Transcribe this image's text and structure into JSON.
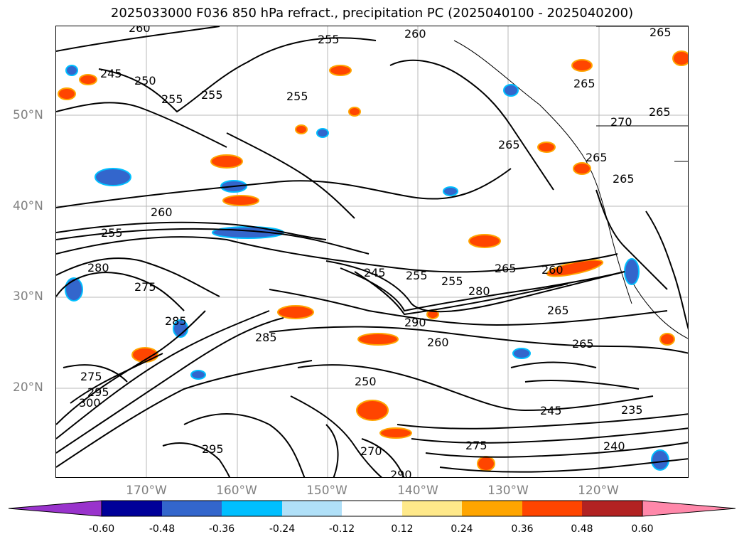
{
  "title": "2025033000 F036 850 hPa refract., precipitation PC (2025040100 - 2025040200)",
  "lat_labels": [
    "50°N",
    "40°N",
    "30°N",
    "20°N"
  ],
  "lon_labels": [
    "170°W",
    "160°W",
    "150°W",
    "140°W",
    "130°W",
    "120°W"
  ],
  "colorbar": {
    "colors": [
      "#9933cc",
      "#000099",
      "#3366cc",
      "#00bfff",
      "#b0e0f8",
      "#ffffff",
      "#ffe98a",
      "#ffa500",
      "#ff4500",
      "#b22222",
      "#ff88aa"
    ],
    "tick_labels": [
      "-0.60",
      "-0.48",
      "-0.36",
      "-0.24",
      "-0.12",
      "0.12",
      "0.24",
      "0.36",
      "0.48",
      "0.60"
    ]
  },
  "contour_labels": [
    "260",
    "255",
    "260",
    "265",
    "245",
    "250",
    "255",
    "255",
    "255",
    "265",
    "265",
    "270",
    "265",
    "265",
    "265",
    "260",
    "255",
    "280",
    "275",
    "245",
    "255",
    "255",
    "260",
    "280",
    "265",
    "265",
    "290",
    "285",
    "285",
    "260",
    "265",
    "275",
    "295",
    "300",
    "250",
    "245",
    "235",
    "240",
    "270",
    "275",
    "290",
    "295"
  ]
}
